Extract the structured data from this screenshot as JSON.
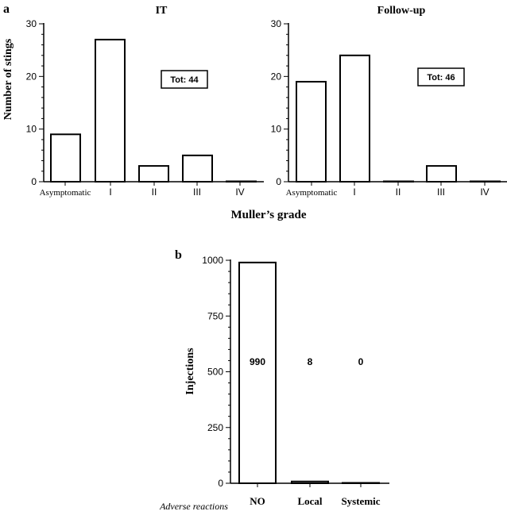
{
  "panel_labels": {
    "a": "a",
    "b": "b"
  },
  "shared_xlabel": "Muller’s grade",
  "chart_data": [
    {
      "type": "bar",
      "title": "IT",
      "ylabel": "Number of stings",
      "categories": [
        "Asymptomatic",
        "I",
        "II",
        "III",
        "IV"
      ],
      "values": [
        9,
        27,
        3,
        5,
        0
      ],
      "ylim": [
        0,
        30
      ],
      "yticks": [
        0,
        10,
        20,
        30
      ],
      "annotation": "Tot: 44"
    },
    {
      "type": "bar",
      "title": "Follow-up",
      "ylabel": "",
      "categories": [
        "Asymptomatic",
        "I",
        "II",
        "III",
        "IV"
      ],
      "values": [
        19,
        24,
        0,
        3,
        0
      ],
      "ylim": [
        0,
        30
      ],
      "yticks": [
        0,
        10,
        20,
        30
      ],
      "annotation": "Tot: 46"
    },
    {
      "type": "bar",
      "title": "",
      "ylabel": "Injections",
      "xlabel": "Adverse reactions",
      "categories": [
        "NO",
        "Local",
        "Systemic"
      ],
      "values": [
        990,
        8,
        0
      ],
      "data_labels": [
        "990",
        "8",
        "0"
      ],
      "ylim": [
        0,
        1000
      ],
      "yticks": [
        0,
        250,
        500,
        750,
        1000
      ]
    }
  ]
}
